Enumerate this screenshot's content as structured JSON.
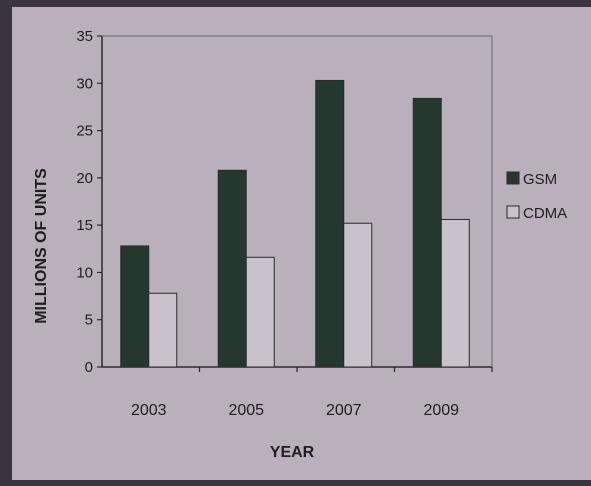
{
  "chart_data": {
    "type": "bar",
    "categories": [
      "2003",
      "2005",
      "2007",
      "2009"
    ],
    "series": [
      {
        "name": "GSM",
        "values": [
          12.8,
          20.8,
          30.3,
          28.4
        ],
        "color": "#25382e"
      },
      {
        "name": "CDMA",
        "values": [
          7.8,
          11.6,
          15.2,
          15.6
        ],
        "color": "#c9c2cc"
      }
    ],
    "title": "",
    "xlabel": "YEAR",
    "ylabel": "MILLIONS OF UNITS",
    "ylim": [
      0,
      35
    ],
    "yticks": [
      "0",
      "5",
      "10",
      "15",
      "20",
      "25",
      "30",
      "35"
    ],
    "grid": false,
    "legend_position": "right"
  }
}
